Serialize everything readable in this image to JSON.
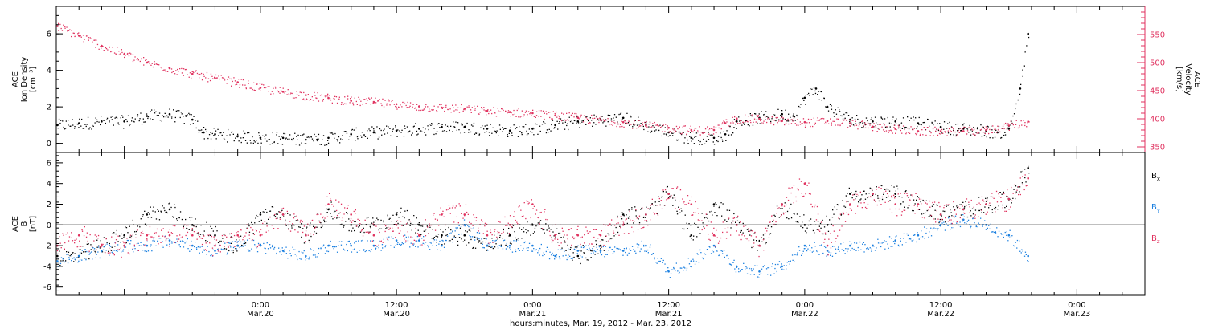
{
  "colors": {
    "black": "#000000",
    "pink": "#e0325f",
    "blue": "#1a7fe0"
  },
  "xaxis": {
    "range_hours": [
      -18,
      78
    ],
    "ticks": [
      {
        "hour": 0,
        "time": "0:00",
        "date": "Mar.20"
      },
      {
        "hour": 12,
        "time": "12:00",
        "date": "Mar.20"
      },
      {
        "hour": 24,
        "time": "0:00",
        "date": "Mar.21"
      },
      {
        "hour": 36,
        "time": "12:00",
        "date": "Mar.21"
      },
      {
        "hour": 48,
        "time": "0:00",
        "date": "Mar.22"
      },
      {
        "hour": 60,
        "time": "12:00",
        "date": "Mar.22"
      },
      {
        "hour": 72,
        "time": "0:00",
        "date": "Mar.23"
      }
    ],
    "title": "hours:minutes, Mar. 19, 2012 - Mar. 23, 2012"
  },
  "chart_data": [
    {
      "type": "scatter",
      "panel": "top",
      "left_axis": {
        "label_lines": [
          "ACE",
          "Ion Density"
        ],
        "unit": "[cm⁻³]",
        "ylim": [
          -0.5,
          7.5
        ],
        "ticks": [
          0,
          2,
          4,
          6
        ],
        "color": "#000000"
      },
      "right_axis": {
        "label_lines": [
          "ACE",
          "Velocity"
        ],
        "unit": "[km/s]",
        "ylim": [
          340,
          600
        ],
        "ticks": [
          350,
          400,
          450,
          500,
          550
        ],
        "color": "#e0325f"
      },
      "series": [
        {
          "key": "density",
          "axis": "left",
          "color": "#000000",
          "x": [
            -17.9,
            -16,
            -14,
            -12,
            -10,
            -8,
            -6,
            -5,
            -4,
            -2,
            0,
            2,
            4,
            5,
            6,
            8,
            10,
            12,
            14,
            16,
            18,
            20,
            22,
            24,
            26,
            28,
            30,
            32,
            34,
            36,
            38,
            40,
            41,
            42,
            44,
            46,
            47,
            48,
            49,
            50,
            52,
            54,
            56,
            58,
            60,
            62,
            64,
            65,
            66,
            67,
            67.7
          ],
          "y": [
            1.0,
            1.1,
            1.2,
            1.2,
            1.5,
            1.6,
            1.3,
            0.6,
            0.5,
            0.4,
            0.3,
            0.3,
            0.2,
            0.2,
            0.3,
            0.5,
            0.6,
            0.7,
            0.8,
            0.9,
            0.9,
            0.8,
            0.7,
            0.8,
            1.0,
            1.2,
            1.3,
            1.4,
            1.0,
            0.6,
            0.3,
            0.3,
            0.5,
            1.2,
            1.4,
            1.6,
            1.5,
            2.5,
            3.0,
            2.0,
            1.3,
            1.2,
            1.2,
            1.1,
            0.9,
            0.8,
            0.7,
            0.6,
            0.8,
            3.0,
            6.0
          ],
          "spread": 0.35
        },
        {
          "key": "velocity",
          "axis": "right",
          "color": "#e0325f",
          "x": [
            -17.9,
            -16,
            -14,
            -12,
            -10,
            -8,
            -6,
            -4,
            -2,
            0,
            2,
            4,
            6,
            8,
            10,
            12,
            14,
            16,
            18,
            20,
            22,
            24,
            26,
            28,
            30,
            32,
            34,
            36,
            38,
            40,
            41,
            42,
            44,
            46,
            48,
            50,
            52,
            54,
            56,
            58,
            60,
            62,
            64,
            66,
            67.7
          ],
          "y": [
            565,
            548,
            530,
            515,
            500,
            490,
            480,
            472,
            465,
            455,
            448,
            442,
            437,
            432,
            430,
            426,
            422,
            420,
            418,
            414,
            412,
            410,
            406,
            402,
            398,
            394,
            388,
            384,
            380,
            380,
            392,
            400,
            400,
            396,
            394,
            396,
            392,
            386,
            382,
            378,
            378,
            378,
            380,
            388,
            395
          ],
          "spread": 8
        }
      ]
    },
    {
      "type": "scatter",
      "panel": "bottom",
      "left_axis": {
        "label_lines": [
          "ACE",
          "B"
        ],
        "unit": "[nT]",
        "ylim": [
          -6.8,
          7
        ],
        "ticks": [
          -6,
          -4,
          -2,
          0,
          2,
          4,
          6
        ],
        "color": "#000000"
      },
      "legend_position": "right",
      "series": [
        {
          "name": "B",
          "subscript": "x",
          "color": "#000000",
          "x": [
            -17.9,
            -16,
            -14,
            -12,
            -10,
            -8,
            -6,
            -4,
            -2,
            0,
            2,
            4,
            6,
            8,
            10,
            12,
            14,
            16,
            18,
            20,
            22,
            24,
            26,
            28,
            30,
            32,
            34,
            36,
            38,
            40,
            42,
            44,
            46,
            48,
            50,
            52,
            54,
            56,
            58,
            60,
            62,
            64,
            66,
            67.7
          ],
          "y": [
            -3,
            -3,
            -2,
            -1,
            1,
            1.5,
            0,
            -1,
            -2,
            1,
            1,
            -1,
            1.5,
            0,
            0,
            1,
            0,
            -1,
            -1,
            -2,
            -1,
            0,
            -1,
            -3,
            -2,
            1,
            1,
            3,
            -1,
            2,
            0,
            -2,
            2,
            0,
            0,
            3,
            3,
            3,
            2,
            1,
            1.5,
            2,
            2.5,
            5.5
          ],
          "spread": 0.9
        },
        {
          "name": "B",
          "subscript": "y",
          "color": "#1a7fe0",
          "x": [
            -17.9,
            -16,
            -14,
            -12,
            -10,
            -8,
            -6,
            -4,
            -2,
            0,
            2,
            4,
            6,
            8,
            10,
            12,
            14,
            16,
            18,
            20,
            22,
            24,
            26,
            28,
            30,
            32,
            34,
            36,
            38,
            40,
            42,
            44,
            46,
            48,
            50,
            52,
            54,
            56,
            58,
            60,
            62,
            64,
            66,
            67.7
          ],
          "y": [
            -3.5,
            -3,
            -2.5,
            -2,
            -2,
            -1.5,
            -2,
            -2.5,
            -2,
            -2,
            -2.5,
            -3,
            -2,
            -2,
            -2,
            -1.5,
            -1.5,
            -2,
            0,
            -2,
            -2,
            -2,
            -3,
            -2.5,
            -2.5,
            -2.5,
            -2,
            -4.5,
            -3.5,
            -2,
            -4,
            -4.5,
            -4,
            -2,
            -2.5,
            -2,
            -2,
            -1.5,
            -1,
            0,
            0.5,
            0,
            -1,
            -3
          ],
          "spread": 0.6
        },
        {
          "name": "B",
          "subscript": "z",
          "color": "#e0325f",
          "x": [
            -17.9,
            -16,
            -14,
            -12,
            -10,
            -8,
            -6,
            -4,
            -2,
            0,
            2,
            4,
            6,
            8,
            10,
            12,
            14,
            16,
            18,
            20,
            22,
            24,
            26,
            28,
            30,
            32,
            34,
            36,
            38,
            40,
            42,
            44,
            46,
            48,
            50,
            52,
            54,
            56,
            58,
            60,
            62,
            64,
            66,
            67.7
          ],
          "y": [
            -2,
            -1,
            -2,
            -2,
            -1,
            -1,
            -1,
            -2,
            -1,
            -1,
            1,
            -1,
            2,
            1,
            -1,
            0,
            -1,
            1,
            1,
            -1,
            0,
            2,
            -1,
            -1,
            -1,
            0,
            1,
            3,
            2,
            -1,
            0,
            -2,
            2,
            4,
            -2,
            2,
            3,
            2,
            2,
            1,
            1.5,
            2,
            2.5,
            4.5
          ],
          "spread": 1.1
        }
      ]
    }
  ]
}
